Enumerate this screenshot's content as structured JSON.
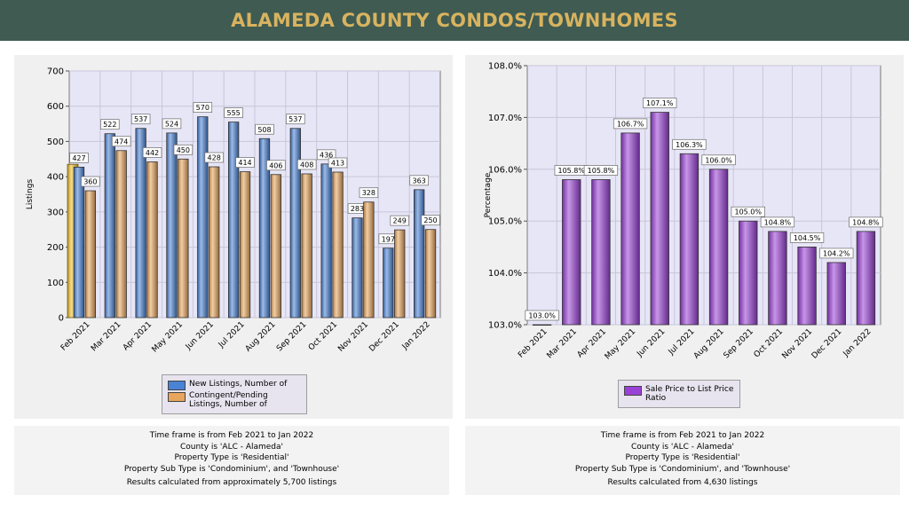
{
  "header": {
    "title": "ALAMEDA COUNTY CONDOS/TOWNHOMES"
  },
  "chart_data": [
    {
      "type": "bar",
      "ylabel": "Listings",
      "ylim": [
        0,
        700
      ],
      "yticks": [
        0,
        100,
        200,
        300,
        400,
        500,
        600,
        700
      ],
      "grid": true,
      "categories": [
        "Feb 2021",
        "Mar 2021",
        "Apr 2021",
        "May 2021",
        "Jun 2021",
        "Jul 2021",
        "Aug 2021",
        "Sep 2021",
        "Oct 2021",
        "Nov 2021",
        "Dec 2021",
        "Jan 2022"
      ],
      "series": [
        {
          "name": "New Listings, Number of",
          "color": "#4a82d4",
          "values": [
            427,
            522,
            537,
            524,
            570,
            555,
            508,
            537,
            436,
            283,
            197,
            363
          ]
        },
        {
          "name": "Contingent/Pending Listings, Number of",
          "color": "#e8a55c",
          "values": [
            360,
            474,
            442,
            450,
            428,
            414,
            406,
            408,
            413,
            328,
            249,
            250
          ]
        }
      ],
      "reference_bar": {
        "value": 435,
        "color": "#f0c02a"
      },
      "legend_position": "bottom-center"
    },
    {
      "type": "bar",
      "ylabel": "Percentage",
      "ylim": [
        103.0,
        108.0
      ],
      "yticks": [
        103.0,
        104.0,
        105.0,
        106.0,
        107.0,
        108.0
      ],
      "grid": true,
      "categories": [
        "Feb 2021",
        "Mar 2021",
        "Apr 2021",
        "May 2021",
        "Jun 2021",
        "Jul 2021",
        "Aug 2021",
        "Sep 2021",
        "Oct 2021",
        "Nov 2021",
        "Dec 2021",
        "Jan 2022"
      ],
      "series": [
        {
          "name": "Sale Price to List Price Ratio",
          "color": "#9a40d6",
          "values": [
            103.0,
            105.8,
            105.8,
            106.7,
            107.1,
            106.3,
            106.0,
            105.0,
            104.8,
            104.5,
            104.2,
            104.8
          ]
        }
      ],
      "legend_position": "bottom-center"
    }
  ],
  "legends": {
    "left": [
      "New Listings, Number of",
      "Contingent/Pending Listings, Number of"
    ],
    "right": [
      "Sale Price to List Price Ratio"
    ]
  },
  "info_left": [
    "Time frame is from Feb 2021 to Jan 2022",
    "County is 'ALC - Alameda'",
    "Property Type is 'Residential'",
    "Property Sub Type is 'Condominium', and 'Townhouse'",
    "Results calculated from approximately 5,700 listings"
  ],
  "info_right": [
    "Time frame is from Feb 2021 to Jan 2022",
    "County is 'ALC - Alameda'",
    "Property Type is 'Residential'",
    "Property Sub Type is 'Condominium', and 'Townhouse'",
    "Results calculated from 4,630 listings"
  ]
}
